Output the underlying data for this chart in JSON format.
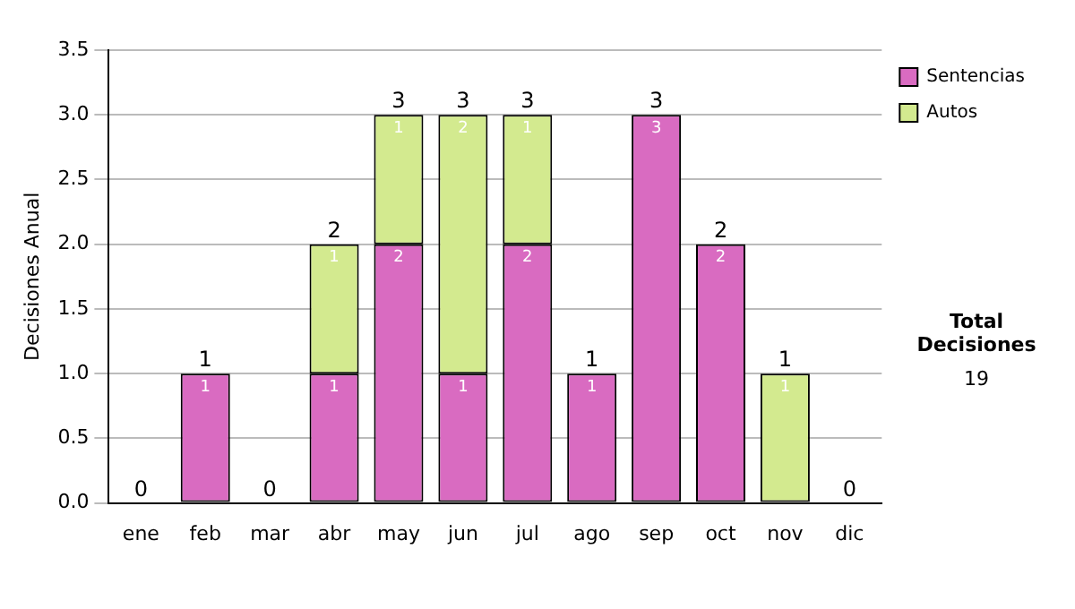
{
  "chart_data": {
    "type": "bar",
    "stacked": true,
    "ylabel": "Decisiones Anual",
    "categories": [
      "ene",
      "feb",
      "mar",
      "abr",
      "may",
      "jun",
      "jul",
      "ago",
      "sep",
      "oct",
      "nov",
      "dic"
    ],
    "series": [
      {
        "name": "Sentencias",
        "color": "#d96bc1",
        "values": [
          0,
          1,
          0,
          1,
          2,
          1,
          2,
          1,
          3,
          2,
          0,
          0
        ],
        "value_labels": [
          null,
          "1",
          null,
          "1",
          "2",
          "1",
          "2",
          "1",
          "3",
          "2",
          null,
          null
        ]
      },
      {
        "name": "Autos",
        "color": "#d3ea8f",
        "values": [
          0,
          0,
          0,
          1,
          1,
          2,
          1,
          0,
          0,
          0,
          1,
          0
        ],
        "value_labels": [
          null,
          null,
          null,
          "1",
          "1",
          "2",
          "1",
          null,
          null,
          null,
          "1",
          null
        ]
      }
    ],
    "totals": [
      "0",
      "1",
      "0",
      "2",
      "3",
      "3",
      "3",
      "1",
      "3",
      "2",
      "1",
      "0"
    ],
    "ylim": [
      0,
      3.5
    ],
    "yticks": [
      {
        "value": 0,
        "label": "0.0"
      },
      {
        "value": 0.5,
        "label": "0.5"
      },
      {
        "value": 1,
        "label": "1.0"
      },
      {
        "value": 1.5,
        "label": "1.5"
      },
      {
        "value": 2,
        "label": "2.0"
      },
      {
        "value": 2.5,
        "label": "2.5"
      },
      {
        "value": 3,
        "label": "3.0"
      },
      {
        "value": 3.5,
        "label": "3.5"
      }
    ],
    "grid": "y",
    "legend": "right",
    "annotations": [
      "Total Decisiones",
      "19"
    ]
  }
}
